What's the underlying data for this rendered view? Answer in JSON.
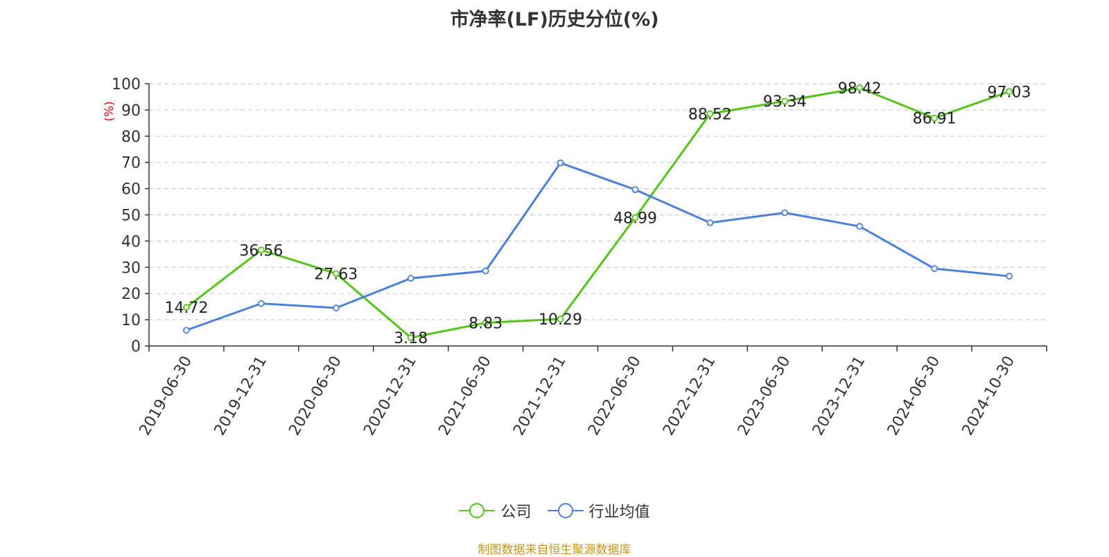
{
  "chart_data": {
    "type": "line",
    "title": "市净率(LF)历史分位(%)",
    "ylabel": "(%)",
    "ylim": [
      0,
      100
    ],
    "yticks": [
      0,
      10,
      20,
      30,
      40,
      50,
      60,
      70,
      80,
      90,
      100
    ],
    "categories": [
      "2019-06-30",
      "2019-12-31",
      "2020-06-30",
      "2020-12-31",
      "2021-06-30",
      "2021-12-31",
      "2022-06-30",
      "2022-12-31",
      "2023-06-30",
      "2023-12-31",
      "2024-06-30",
      "2024-10-30"
    ],
    "series": [
      {
        "name": "公司",
        "color": "#52c41a",
        "values": [
          14.72,
          36.56,
          27.63,
          3.18,
          8.83,
          10.29,
          48.99,
          88.52,
          93.34,
          98.42,
          86.91,
          97.03
        ],
        "labels": [
          "14.72",
          "36.56",
          "27.63",
          "3.18",
          "8.83",
          "10.29",
          "48.99",
          "88.52",
          "93.34",
          "98.42",
          "86.91",
          "97.03"
        ]
      },
      {
        "name": "行业均值",
        "color": "#4a7fdb",
        "values": [
          6,
          16.2,
          14.5,
          25.8,
          28.6,
          69.8,
          59.6,
          47,
          50.8,
          45.6,
          29.5,
          26.6
        ]
      }
    ],
    "grid": true,
    "legend_position": "bottom"
  },
  "ylabel_color": "#e60000",
  "source_text": "制图数据来自恒生聚源数据库",
  "source_color": "#c8961e"
}
